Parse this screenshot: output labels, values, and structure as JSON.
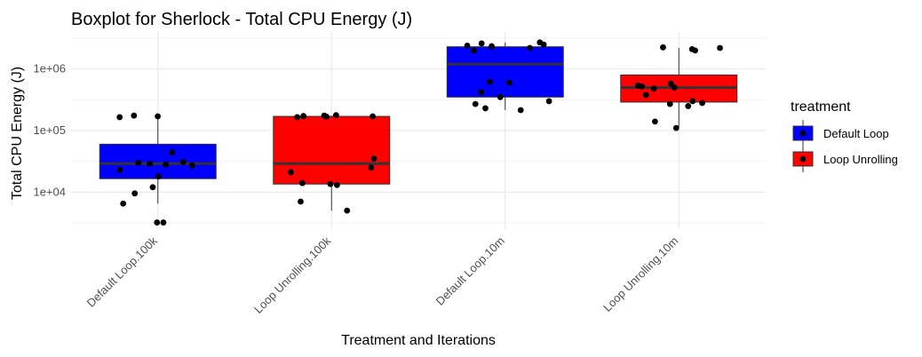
{
  "chart_data": {
    "type": "boxplot",
    "title": "Boxplot for Sherlock - Total CPU Energy (J)",
    "xlabel": "Treatment and Iterations",
    "ylabel": "Total CPU Energy (J)",
    "y_scale": "log10",
    "ylim": [
      2500,
      4000000
    ],
    "y_ticks": [
      {
        "value": 10000,
        "label": "1e+04"
      },
      {
        "value": 100000,
        "label": "1e+05"
      },
      {
        "value": 1000000,
        "label": "1e+06"
      }
    ],
    "categories": [
      "Default Loop.100k",
      "Loop Unrolling.100k",
      "Default Loop.10m",
      "Loop Unrolling.10m"
    ],
    "boxes": [
      {
        "category": "Default Loop.100k",
        "treatment": "Default Loop",
        "whisker_low": 6500,
        "q1": 16500,
        "median": 29000,
        "q3": 60000,
        "whisker_high": 175000,
        "points": [
          3200,
          3200,
          6500,
          9500,
          12000,
          18000,
          23000,
          27000,
          28000,
          29000,
          30000,
          31000,
          44000,
          165000,
          170000,
          175000
        ]
      },
      {
        "category": "Loop Unrolling.100k",
        "treatment": "Loop Unrolling",
        "whisker_low": 5000,
        "q1": 13500,
        "median": 29000,
        "q3": 170000,
        "whisker_high": 175000,
        "points": [
          5000,
          7000,
          13000,
          13500,
          14000,
          21000,
          25000,
          35000,
          165000,
          168000,
          170000,
          172000,
          175000,
          178000
        ]
      },
      {
        "category": "Default Loop.10m",
        "treatment": "Default Loop",
        "whisker_low": 215000,
        "q1": 350000,
        "median": 1200000,
        "q3": 2300000,
        "whisker_high": 2700000,
        "points": [
          215000,
          230000,
          270000,
          300000,
          350000,
          420000,
          600000,
          620000,
          2000000,
          2200000,
          2300000,
          2350000,
          2400000,
          2500000,
          2600000,
          2700000
        ]
      },
      {
        "category": "Loop Unrolling.10m",
        "treatment": "Loop Unrolling",
        "whisker_low": 115000,
        "q1": 290000,
        "median": 500000,
        "q3": 800000,
        "whisker_high": 2200000,
        "points": [
          110000,
          140000,
          250000,
          270000,
          280000,
          300000,
          380000,
          480000,
          500000,
          520000,
          540000,
          580000,
          2000000,
          2100000,
          2200000,
          2250000
        ]
      }
    ],
    "legend": {
      "title": "treatment",
      "position": "right",
      "entries": [
        {
          "label": "Default Loop",
          "color": "#0000ff"
        },
        {
          "label": "Loop Unrolling",
          "color": "#ff0000"
        }
      ]
    },
    "colors": {
      "Default Loop": "#0000ff",
      "Loop Unrolling": "#ff0000",
      "median_line": "#333333",
      "points": "#000000"
    }
  }
}
